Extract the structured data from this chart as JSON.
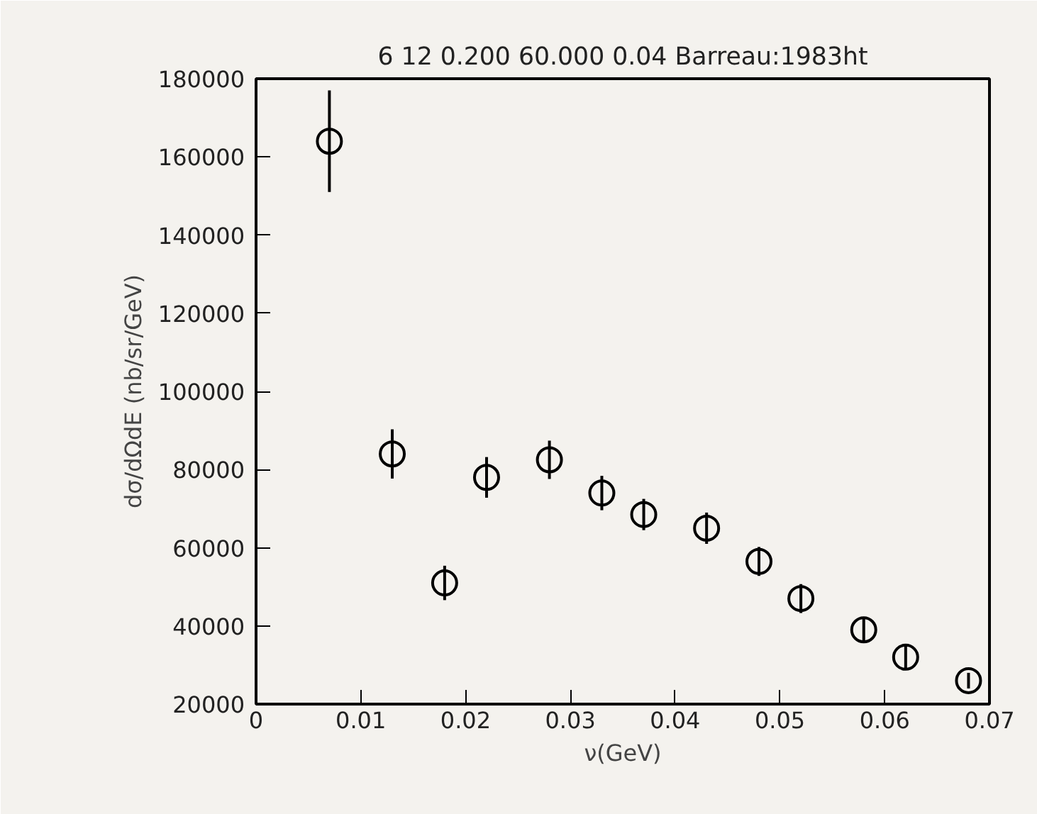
{
  "chart_data": {
    "type": "scatter",
    "title": "6 12 0.200 60.000 0.04 Barreau:1983ht",
    "xlabel": "ν(GeV)",
    "ylabel": "dσ/dΩdE (nb/sr/GeV)",
    "x": [
      0.007,
      0.013,
      0.018,
      0.022,
      0.028,
      0.033,
      0.037,
      0.043,
      0.048,
      0.052,
      0.058,
      0.062,
      0.068
    ],
    "series": [
      {
        "color": "#000000",
        "values": [
          164000,
          84000,
          51000,
          78000,
          82500,
          74000,
          68500,
          65000,
          56500,
          47000,
          39000,
          32000,
          26000
        ],
        "errors": [
          13000,
          6300,
          4400,
          5200,
          4900,
          4400,
          4000,
          4000,
          3700,
          3700,
          3300,
          3000,
          2000
        ]
      }
    ],
    "xlim": [
      0,
      0.07
    ],
    "xticks": [
      0,
      0.01,
      0.02,
      0.03,
      0.04,
      0.05,
      0.06,
      0.07
    ],
    "ylim": [
      20000,
      180000
    ],
    "yticks": [
      20000,
      40000,
      60000,
      80000,
      100000,
      120000,
      140000,
      160000,
      180000
    ],
    "marker": "circle",
    "grid": false
  }
}
